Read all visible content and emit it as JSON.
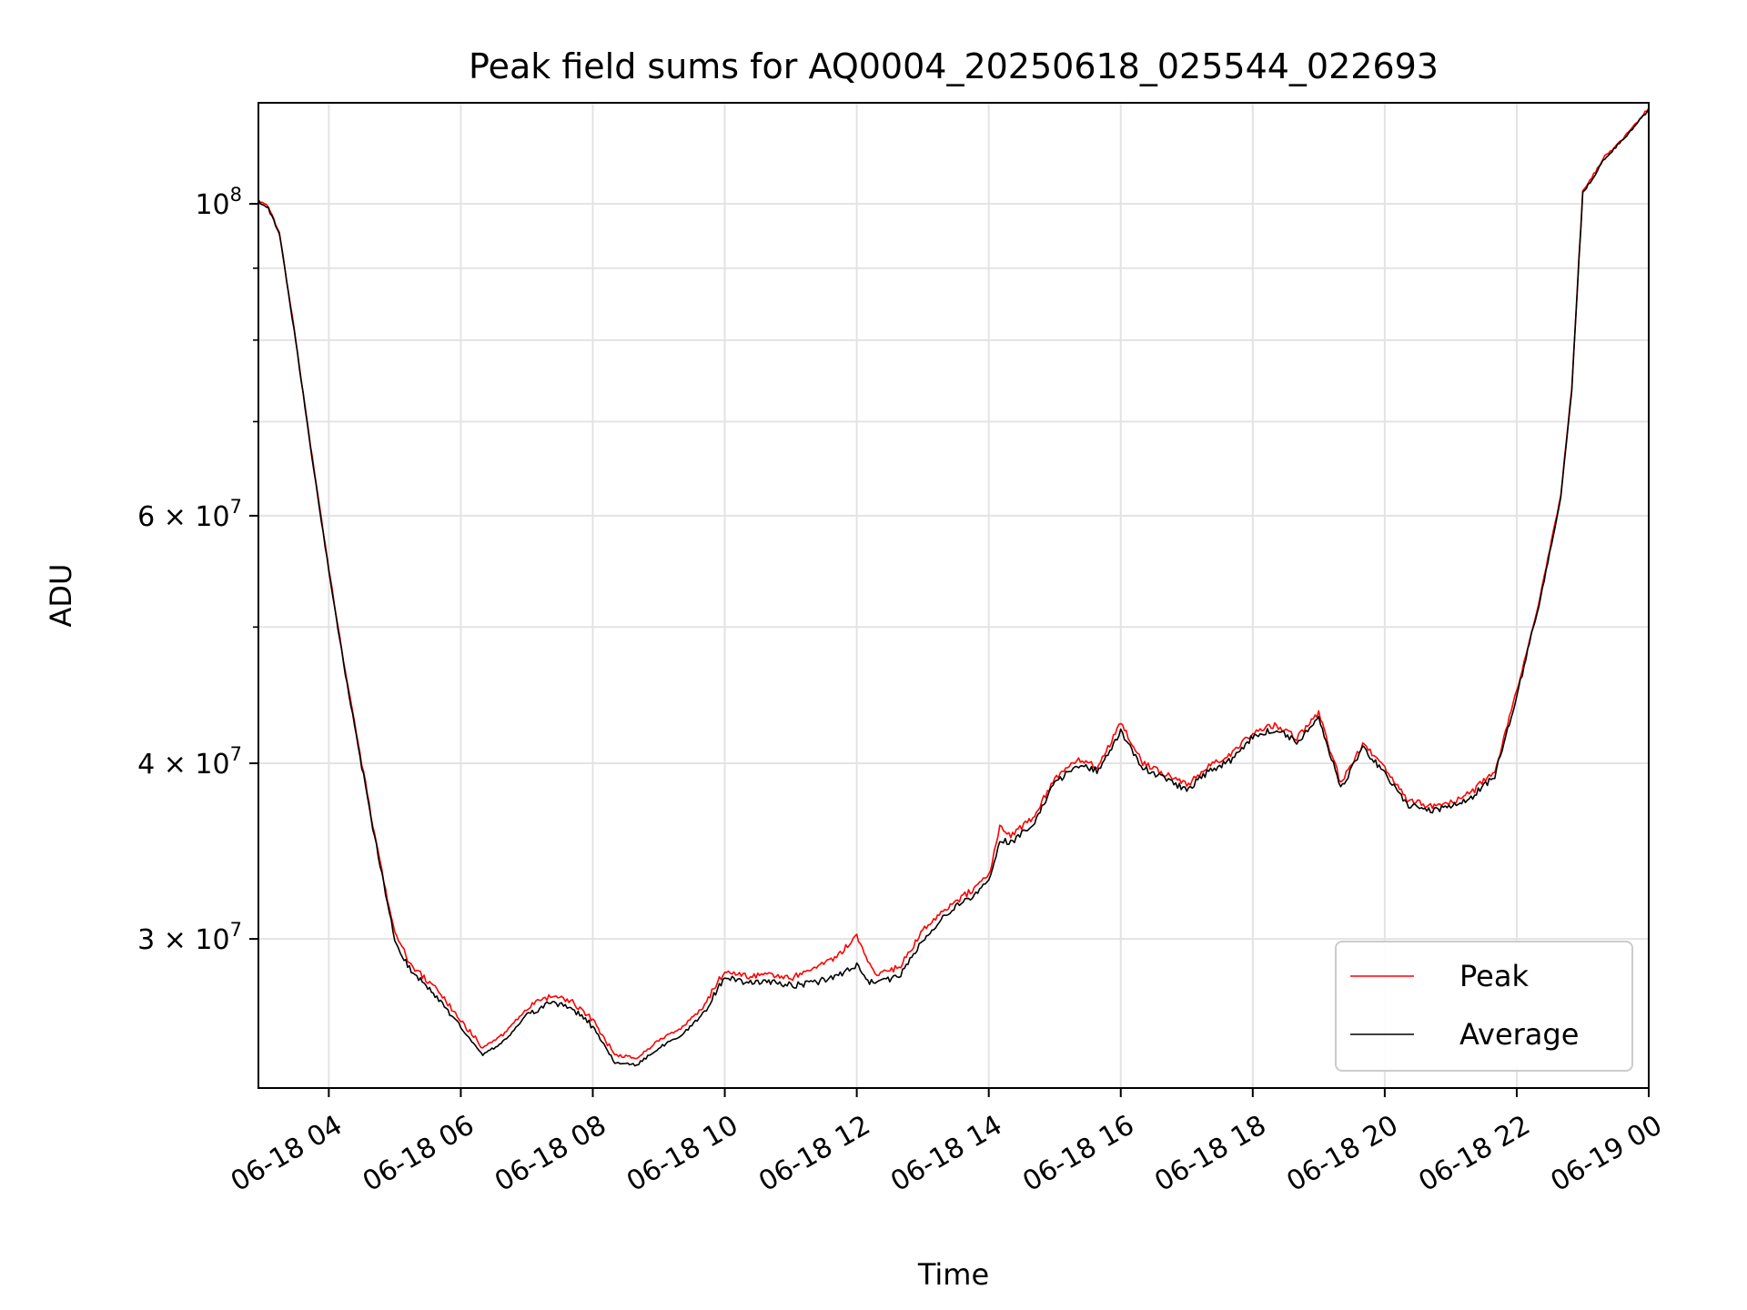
{
  "chart_data": {
    "type": "line",
    "title": "Peak field sums for AQ0004_20250618_025544_022693",
    "xlabel": "Time",
    "ylabel": "ADU",
    "y_scale": "log",
    "ylim": [
      23500000,
      118000000
    ],
    "xlim": [
      "2025-06-18 02:56",
      "2025-06-19 00:00"
    ],
    "grid": true,
    "legend_position": "lower right",
    "x_ticks": [
      {
        "value": "2025-06-18 04:00",
        "label": "06-18 04"
      },
      {
        "value": "2025-06-18 06:00",
        "label": "06-18 06"
      },
      {
        "value": "2025-06-18 08:00",
        "label": "06-18 08"
      },
      {
        "value": "2025-06-18 10:00",
        "label": "06-18 10"
      },
      {
        "value": "2025-06-18 12:00",
        "label": "06-18 12"
      },
      {
        "value": "2025-06-18 14:00",
        "label": "06-18 14"
      },
      {
        "value": "2025-06-18 16:00",
        "label": "06-18 16"
      },
      {
        "value": "2025-06-18 18:00",
        "label": "06-18 18"
      },
      {
        "value": "2025-06-18 20:00",
        "label": "06-18 20"
      },
      {
        "value": "2025-06-18 22:00",
        "label": "06-18 22"
      },
      {
        "value": "2025-06-19 00:00",
        "label": "06-19 00"
      }
    ],
    "y_ticks": [
      {
        "value": 100000000,
        "base": "10",
        "exp": "8"
      },
      {
        "value": 60000000,
        "base": "6 × 10",
        "exp": "7"
      },
      {
        "value": 40000000,
        "base": "4 × 10",
        "exp": "7"
      },
      {
        "value": 30000000,
        "base": "3 × 10",
        "exp": "7"
      }
    ],
    "y_minor_ticks": [
      50000000,
      70000000,
      80000000,
      90000000
    ],
    "series": [
      {
        "name": "Peak",
        "color": "#ff0000",
        "x": [
          "2025-06-18 02:56",
          "2025-06-18 03:05",
          "2025-06-18 03:15",
          "2025-06-18 03:30",
          "2025-06-18 03:45",
          "2025-06-18 04:00",
          "2025-06-18 04:15",
          "2025-06-18 04:30",
          "2025-06-18 04:45",
          "2025-06-18 05:00",
          "2025-06-18 05:15",
          "2025-06-18 05:30",
          "2025-06-18 05:45",
          "2025-06-18 06:00",
          "2025-06-18 06:20",
          "2025-06-18 06:40",
          "2025-06-18 07:00",
          "2025-06-18 07:20",
          "2025-06-18 07:40",
          "2025-06-18 08:00",
          "2025-06-18 08:20",
          "2025-06-18 08:40",
          "2025-06-18 09:00",
          "2025-06-18 09:20",
          "2025-06-18 09:40",
          "2025-06-18 10:00",
          "2025-06-18 10:10",
          "2025-06-18 10:20",
          "2025-06-18 10:40",
          "2025-06-18 11:00",
          "2025-06-18 11:20",
          "2025-06-18 11:40",
          "2025-06-18 12:00",
          "2025-06-18 12:10",
          "2025-06-18 12:20",
          "2025-06-18 12:40",
          "2025-06-18 13:00",
          "2025-06-18 13:20",
          "2025-06-18 13:40",
          "2025-06-18 14:00",
          "2025-06-18 14:10",
          "2025-06-18 14:20",
          "2025-06-18 14:40",
          "2025-06-18 15:00",
          "2025-06-18 15:20",
          "2025-06-18 15:40",
          "2025-06-18 16:00",
          "2025-06-18 16:20",
          "2025-06-18 16:40",
          "2025-06-18 17:00",
          "2025-06-18 17:20",
          "2025-06-18 17:40",
          "2025-06-18 18:00",
          "2025-06-18 18:20",
          "2025-06-18 18:40",
          "2025-06-18 19:00",
          "2025-06-18 19:20",
          "2025-06-18 19:40",
          "2025-06-18 20:00",
          "2025-06-18 20:20",
          "2025-06-18 20:40",
          "2025-06-18 21:00",
          "2025-06-18 21:20",
          "2025-06-18 21:40",
          "2025-06-18 22:00",
          "2025-06-18 22:20",
          "2025-06-18 22:40",
          "2025-06-18 22:50",
          "2025-06-18 23:00",
          "2025-06-18 23:20",
          "2025-06-18 23:40",
          "2025-06-19 00:00"
        ],
        "values": [
          100500000,
          99500000,
          95500000,
          80000000,
          66000000,
          55000000,
          46500000,
          40000000,
          34500000,
          30300000,
          28700000,
          28000000,
          27200000,
          26200000,
          25100000,
          25700000,
          26800000,
          27300000,
          27100000,
          26300000,
          24800000,
          24700000,
          25400000,
          25900000,
          26800000,
          28500000,
          28400000,
          28200000,
          28300000,
          28100000,
          28600000,
          29000000,
          30200000,
          28800000,
          28300000,
          28700000,
          30400000,
          31500000,
          32300000,
          33200000,
          36000000,
          35500000,
          36600000,
          39000000,
          40200000,
          39800000,
          42800000,
          40000000,
          39300000,
          38600000,
          39800000,
          40500000,
          42100000,
          42600000,
          41700000,
          43400000,
          38700000,
          41300000,
          39700000,
          37700000,
          37300000,
          37500000,
          38200000,
          39500000,
          45000000,
          52000000,
          62000000,
          74000000,
          102000000,
          108000000,
          112000000,
          117000000
        ]
      },
      {
        "name": "Average",
        "color": "#000000",
        "x": [
          "2025-06-18 02:56",
          "2025-06-18 03:05",
          "2025-06-18 03:15",
          "2025-06-18 03:30",
          "2025-06-18 03:45",
          "2025-06-18 04:00",
          "2025-06-18 04:15",
          "2025-06-18 04:30",
          "2025-06-18 04:45",
          "2025-06-18 05:00",
          "2025-06-18 05:15",
          "2025-06-18 05:30",
          "2025-06-18 05:45",
          "2025-06-18 06:00",
          "2025-06-18 06:20",
          "2025-06-18 06:40",
          "2025-06-18 07:00",
          "2025-06-18 07:20",
          "2025-06-18 07:40",
          "2025-06-18 08:00",
          "2025-06-18 08:20",
          "2025-06-18 08:40",
          "2025-06-18 09:00",
          "2025-06-18 09:20",
          "2025-06-18 09:40",
          "2025-06-18 10:00",
          "2025-06-18 10:10",
          "2025-06-18 10:20",
          "2025-06-18 10:40",
          "2025-06-18 11:00",
          "2025-06-18 11:20",
          "2025-06-18 11:40",
          "2025-06-18 12:00",
          "2025-06-18 12:10",
          "2025-06-18 12:20",
          "2025-06-18 12:40",
          "2025-06-18 13:00",
          "2025-06-18 13:20",
          "2025-06-18 13:40",
          "2025-06-18 14:00",
          "2025-06-18 14:10",
          "2025-06-18 14:20",
          "2025-06-18 14:40",
          "2025-06-18 15:00",
          "2025-06-18 15:20",
          "2025-06-18 15:40",
          "2025-06-18 16:00",
          "2025-06-18 16:20",
          "2025-06-18 16:40",
          "2025-06-18 17:00",
          "2025-06-18 17:20",
          "2025-06-18 17:40",
          "2025-06-18 18:00",
          "2025-06-18 18:20",
          "2025-06-18 18:40",
          "2025-06-18 19:00",
          "2025-06-18 19:20",
          "2025-06-18 19:40",
          "2025-06-18 20:00",
          "2025-06-18 20:20",
          "2025-06-18 20:40",
          "2025-06-18 21:00",
          "2025-06-18 21:20",
          "2025-06-18 21:40",
          "2025-06-18 22:00",
          "2025-06-18 22:20",
          "2025-06-18 22:40",
          "2025-06-18 22:50",
          "2025-06-18 23:00",
          "2025-06-18 23:20",
          "2025-06-18 23:40",
          "2025-06-19 00:00"
        ],
        "values": [
          100300000,
          99300000,
          95300000,
          79800000,
          65800000,
          54800000,
          46300000,
          39800000,
          34300000,
          30000000,
          28400000,
          27700000,
          26900000,
          25900000,
          24800000,
          25400000,
          26500000,
          27000000,
          26800000,
          26000000,
          24500000,
          24400000,
          25100000,
          25600000,
          26500000,
          28200000,
          28100000,
          27900000,
          28000000,
          27800000,
          27900000,
          28200000,
          28700000,
          28000000,
          27900000,
          28300000,
          30000000,
          31200000,
          32000000,
          32900000,
          35300000,
          35100000,
          36200000,
          38700000,
          39900000,
          39500000,
          42200000,
          39700000,
          39000000,
          38300000,
          39500000,
          40200000,
          41800000,
          42300000,
          41400000,
          43100000,
          38400000,
          41000000,
          39400000,
          37400000,
          37000000,
          37200000,
          37900000,
          39200000,
          44700000,
          51700000,
          61700000,
          73700000,
          101700000,
          107700000,
          111700000,
          116700000
        ]
      }
    ]
  }
}
